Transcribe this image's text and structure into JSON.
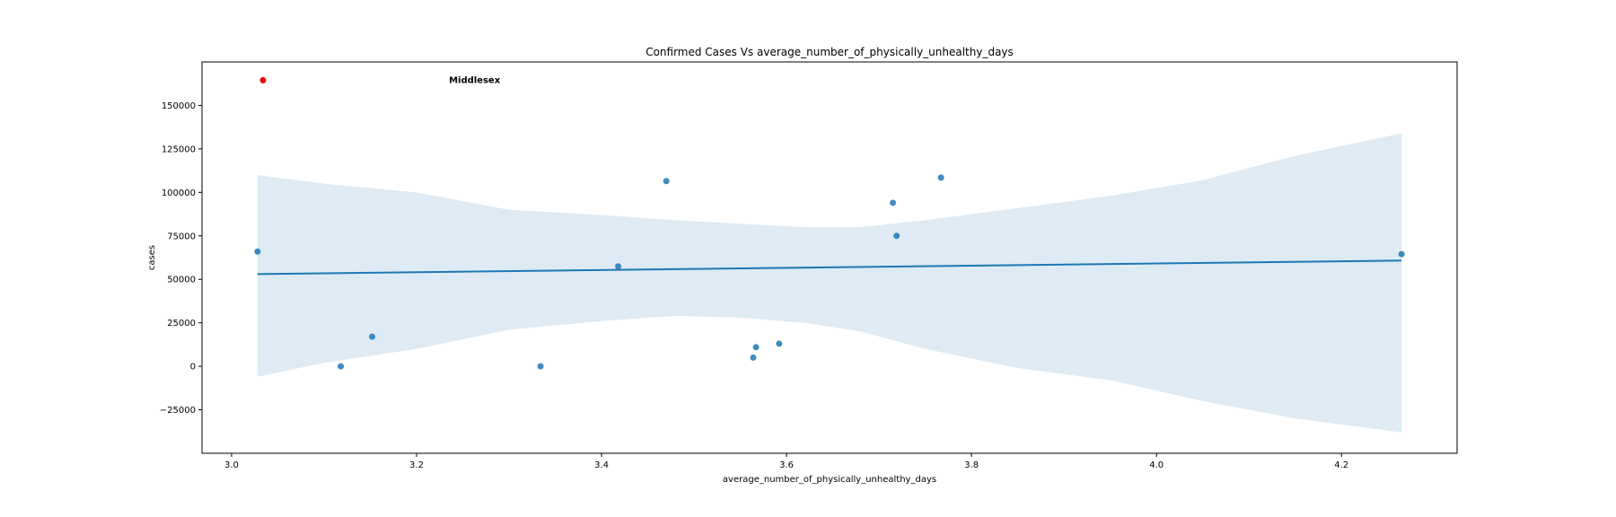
{
  "chart_data": {
    "type": "scatter",
    "title": "Confirmed Cases Vs average_number_of_physically_unhealthy_days",
    "xlabel": "average_number_of_physically_unhealthy_days",
    "ylabel": "cases",
    "xlim": [
      2.968,
      4.325
    ],
    "ylim": [
      -50000,
      175000
    ],
    "xticks": [
      3.0,
      3.2,
      3.4,
      3.6,
      3.8,
      4.0,
      4.2
    ],
    "xtick_labels": [
      "3.0",
      "3.2",
      "3.4",
      "3.6",
      "3.8",
      "4.0",
      "4.2"
    ],
    "yticks": [
      -25000,
      0,
      25000,
      50000,
      75000,
      100000,
      125000,
      150000
    ],
    "ytick_labels": [
      "−25000",
      "0",
      "25000",
      "50000",
      "75000",
      "100000",
      "125000",
      "150000"
    ],
    "points": [
      {
        "x": 3.028,
        "y": 66000
      },
      {
        "x": 3.118,
        "y": 0
      },
      {
        "x": 3.152,
        "y": 17000
      },
      {
        "x": 3.334,
        "y": 0
      },
      {
        "x": 3.418,
        "y": 57500
      },
      {
        "x": 3.47,
        "y": 106500
      },
      {
        "x": 3.564,
        "y": 5000
      },
      {
        "x": 3.567,
        "y": 11000
      },
      {
        "x": 3.592,
        "y": 13000
      },
      {
        "x": 3.715,
        "y": 94000
      },
      {
        "x": 3.719,
        "y": 75000
      },
      {
        "x": 3.767,
        "y": 108500
      },
      {
        "x": 4.265,
        "y": 64500
      }
    ],
    "highlight": {
      "x": 3.034,
      "y": 164500,
      "label": "Middlesex",
      "label_x": 3.235,
      "color": "#e8000b"
    },
    "regression": {
      "x": [
        3.028,
        4.265
      ],
      "y": [
        53000,
        60800
      ],
      "color": "#1f77b4"
    },
    "confidence_band": {
      "color": "#1f77b4",
      "x": [
        3.028,
        3.1,
        3.2,
        3.3,
        3.4,
        3.48,
        3.55,
        3.62,
        3.68,
        3.75,
        3.85,
        3.95,
        4.05,
        4.15,
        4.265
      ],
      "upper": [
        110000,
        105000,
        100000,
        90000,
        87000,
        84000,
        82000,
        80000,
        80000,
        84000,
        91000,
        98000,
        107000,
        121000,
        134000
      ],
      "lower": [
        -6000,
        2000,
        10000,
        21000,
        26000,
        29000,
        28000,
        25000,
        20000,
        10000,
        -1000,
        -8000,
        -20000,
        -30000,
        -38000
      ]
    },
    "point_color": "#1f77b4",
    "grid": false
  }
}
